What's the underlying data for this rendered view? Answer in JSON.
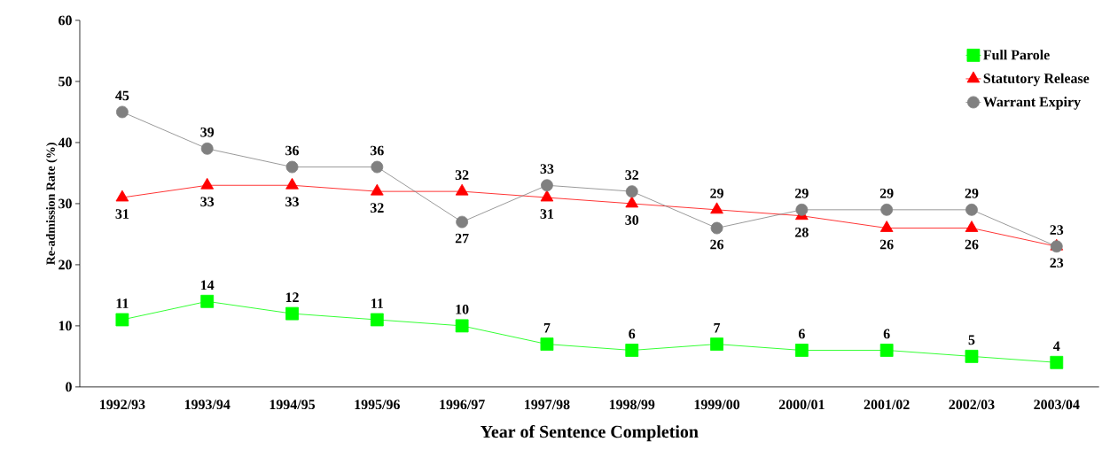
{
  "chart_data": {
    "type": "line",
    "xlabel": "Year of Sentence Completion",
    "ylabel": "Re-admission Rate (%)",
    "categories": [
      "1992/93",
      "1993/94",
      "1994/95",
      "1995/96",
      "1996/97",
      "1997/98",
      "1998/99",
      "1999/00",
      "2000/01",
      "2001/02",
      "2002/03",
      "2003/04"
    ],
    "series": [
      {
        "name": "Full Parole",
        "color": "#00ff00",
        "marker": "square",
        "values": [
          11,
          14,
          12,
          11,
          10,
          7,
          6,
          7,
          6,
          6,
          5,
          4
        ]
      },
      {
        "name": "Statutory Release",
        "color": "#ff0000",
        "marker": "triangle",
        "values": [
          31,
          33,
          33,
          32,
          32,
          31,
          30,
          29,
          28,
          26,
          26,
          23
        ]
      },
      {
        "name": "Warrant Expiry",
        "color": "#808080",
        "marker": "circle",
        "values": [
          45,
          39,
          36,
          36,
          27,
          33,
          32,
          26,
          29,
          29,
          29,
          23
        ]
      }
    ],
    "ylim": [
      0,
      60
    ],
    "yticks": [
      0,
      10,
      20,
      30,
      40,
      50,
      60
    ],
    "grid": false,
    "legend": "top right",
    "data_labels": true
  }
}
